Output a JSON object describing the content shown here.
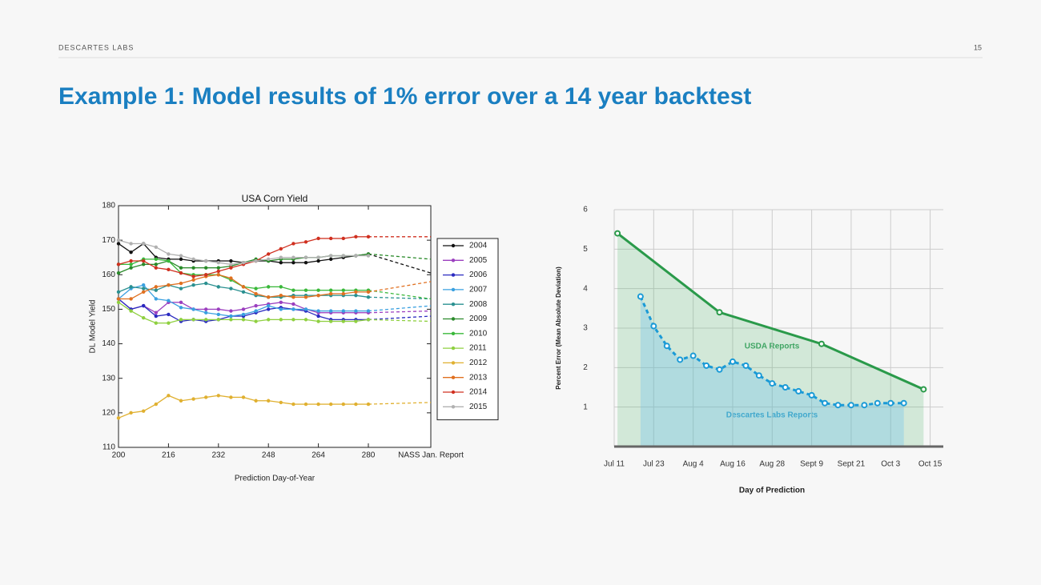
{
  "header": {
    "brand": "DESCARTES LABS",
    "page": "15",
    "title": "Example 1:  Model results of 1% error over a 14 year backtest"
  },
  "chart_data": [
    {
      "type": "line",
      "title": "USA Corn Yield",
      "x_label": "Prediction Day-of-Year",
      "y_label": "DL Model Yield",
      "x": [
        200,
        204,
        208,
        212,
        216,
        220,
        224,
        228,
        232,
        236,
        240,
        244,
        248,
        252,
        256,
        260,
        264,
        268,
        272,
        276,
        280,
        300
      ],
      "xlim": [
        200,
        300
      ],
      "ylim": [
        110,
        180
      ],
      "xticks": [
        200,
        216,
        232,
        248,
        264,
        280,
        {
          "value": 300,
          "label": "NASS Jan. Report"
        }
      ],
      "yticks": [
        110,
        120,
        130,
        140,
        150,
        160,
        170,
        180
      ],
      "grid": false,
      "legend": "right",
      "series": [
        {
          "name": "2004",
          "color": "#111111",
          "values": [
            169,
            166.5,
            169,
            165,
            164.5,
            164.5,
            164,
            164,
            164,
            164,
            163.5,
            164,
            164,
            163.5,
            163.5,
            163.5,
            164,
            164.5,
            165,
            165.5,
            166,
            160.5
          ]
        },
        {
          "name": "2005",
          "color": "#9b3fbf",
          "values": [
            153,
            150,
            151,
            149,
            152,
            152,
            150,
            150,
            150,
            149.5,
            150,
            151,
            151.5,
            152,
            151.5,
            150,
            149,
            149,
            149,
            149,
            149,
            149.5
          ]
        },
        {
          "name": "2006",
          "color": "#2a2ac0",
          "values": [
            153,
            150,
            151,
            148,
            148.5,
            146.5,
            147,
            146.5,
            147,
            148,
            148,
            149,
            150,
            150.5,
            150,
            149.5,
            148,
            147,
            147,
            147,
            147,
            148
          ]
        },
        {
          "name": "2007",
          "color": "#3aa0e0",
          "values": [
            153,
            156,
            157,
            153,
            152.5,
            150.5,
            150,
            149,
            148.5,
            148,
            148.5,
            149.5,
            151,
            150,
            150,
            150,
            149.5,
            149.5,
            149.5,
            149.5,
            149.5,
            151
          ]
        },
        {
          "name": "2008",
          "color": "#2a9090",
          "values": [
            155,
            156.5,
            156,
            155.5,
            157,
            156,
            157,
            157.5,
            156.5,
            156,
            155,
            154,
            153.5,
            153.5,
            154,
            154,
            154,
            154,
            154,
            154,
            153.5,
            153
          ]
        },
        {
          "name": "2009",
          "color": "#2a8a2a",
          "values": [
            160.5,
            162,
            163,
            163,
            164,
            162,
            162,
            162,
            162,
            162.5,
            163.5,
            164.5,
            164,
            164.5,
            164.5,
            165,
            165,
            165.5,
            165.5,
            165.5,
            166,
            164.5
          ]
        },
        {
          "name": "2010",
          "color": "#3ab83a",
          "values": [
            163,
            163,
            164.5,
            164.5,
            164,
            160.5,
            160,
            160,
            160,
            158.5,
            156.5,
            156,
            156.5,
            156.5,
            155.5,
            155.5,
            155.5,
            155.5,
            155.5,
            155.5,
            155.5,
            153
          ]
        },
        {
          "name": "2011",
          "color": "#8fd040",
          "values": [
            152,
            149.5,
            147.5,
            146,
            146,
            147,
            147,
            147,
            147,
            147,
            147,
            146.5,
            147,
            147,
            147,
            147,
            146.5,
            146.5,
            146.5,
            146.5,
            147,
            146.5
          ]
        },
        {
          "name": "2012",
          "color": "#e0b030",
          "values": [
            118.5,
            120,
            120.5,
            122.5,
            125,
            123.5,
            124,
            124.5,
            125,
            124.5,
            124.5,
            123.5,
            123.5,
            123,
            122.5,
            122.5,
            122.5,
            122.5,
            122.5,
            122.5,
            122.5,
            123
          ]
        },
        {
          "name": "2013",
          "color": "#e07020",
          "values": [
            153,
            153,
            155,
            156.5,
            157,
            157.5,
            158.5,
            159.5,
            160,
            159,
            156.5,
            154.5,
            153.5,
            154,
            153.5,
            153.5,
            154,
            154.5,
            154.5,
            155,
            155,
            158
          ]
        },
        {
          "name": "2014",
          "color": "#d03020",
          "values": [
            163,
            164,
            164,
            162,
            161.5,
            160.5,
            159.5,
            160,
            161,
            162,
            163,
            164,
            166,
            167.5,
            169,
            169.5,
            170.5,
            170.5,
            170.5,
            171,
            171,
            171
          ]
        },
        {
          "name": "2015",
          "color": "#b0b0b0",
          "values": [
            170,
            169,
            169,
            168,
            166,
            165.5,
            164.5,
            164,
            163.5,
            163,
            163.5,
            164,
            164.5,
            165,
            165,
            165,
            165,
            165.5,
            165.5,
            165.5,
            165.5,
            null
          ]
        }
      ]
    },
    {
      "type": "area",
      "x_label": "Day of Prediction",
      "y_label": "Percent Error (Mean Absolute Deviation)",
      "xlim": [
        192,
        292
      ],
      "ylim": [
        0,
        6
      ],
      "xticks": [
        {
          "value": 192,
          "label": "Jul 11"
        },
        {
          "value": 204,
          "label": "Jul 23"
        },
        {
          "value": 216,
          "label": "Aug 4"
        },
        {
          "value": 228,
          "label": "Aug 16"
        },
        {
          "value": 240,
          "label": "Aug 28"
        },
        {
          "value": 252,
          "label": "Sept 9"
        },
        {
          "value": 264,
          "label": "Sept 21"
        },
        {
          "value": 276,
          "label": "Oct 3"
        },
        {
          "value": 288,
          "label": "Oct 15"
        }
      ],
      "yticks": [
        1,
        2,
        3,
        4,
        5,
        6
      ],
      "grid": true,
      "annotations": [
        "USDA Reports",
        "Descartes Labs Reports"
      ],
      "series": [
        {
          "color": "#2a9a4a",
          "x": [
            193,
            224,
            255,
            286
          ],
          "values": [
            5.4,
            3.4,
            2.6,
            1.45
          ]
        },
        {
          "color": "#1a9ad6",
          "x": [
            200,
            204,
            208,
            212,
            216,
            220,
            224,
            228,
            232,
            236,
            240,
            244,
            248,
            252,
            256,
            260,
            264,
            268,
            272,
            276,
            280
          ],
          "values": [
            3.8,
            3.05,
            2.55,
            2.2,
            2.3,
            2.05,
            1.95,
            2.15,
            2.05,
            1.8,
            1.6,
            1.5,
            1.4,
            1.3,
            1.1,
            1.05,
            1.05,
            1.05,
            1.1,
            1.1,
            1.1
          ]
        }
      ]
    }
  ]
}
